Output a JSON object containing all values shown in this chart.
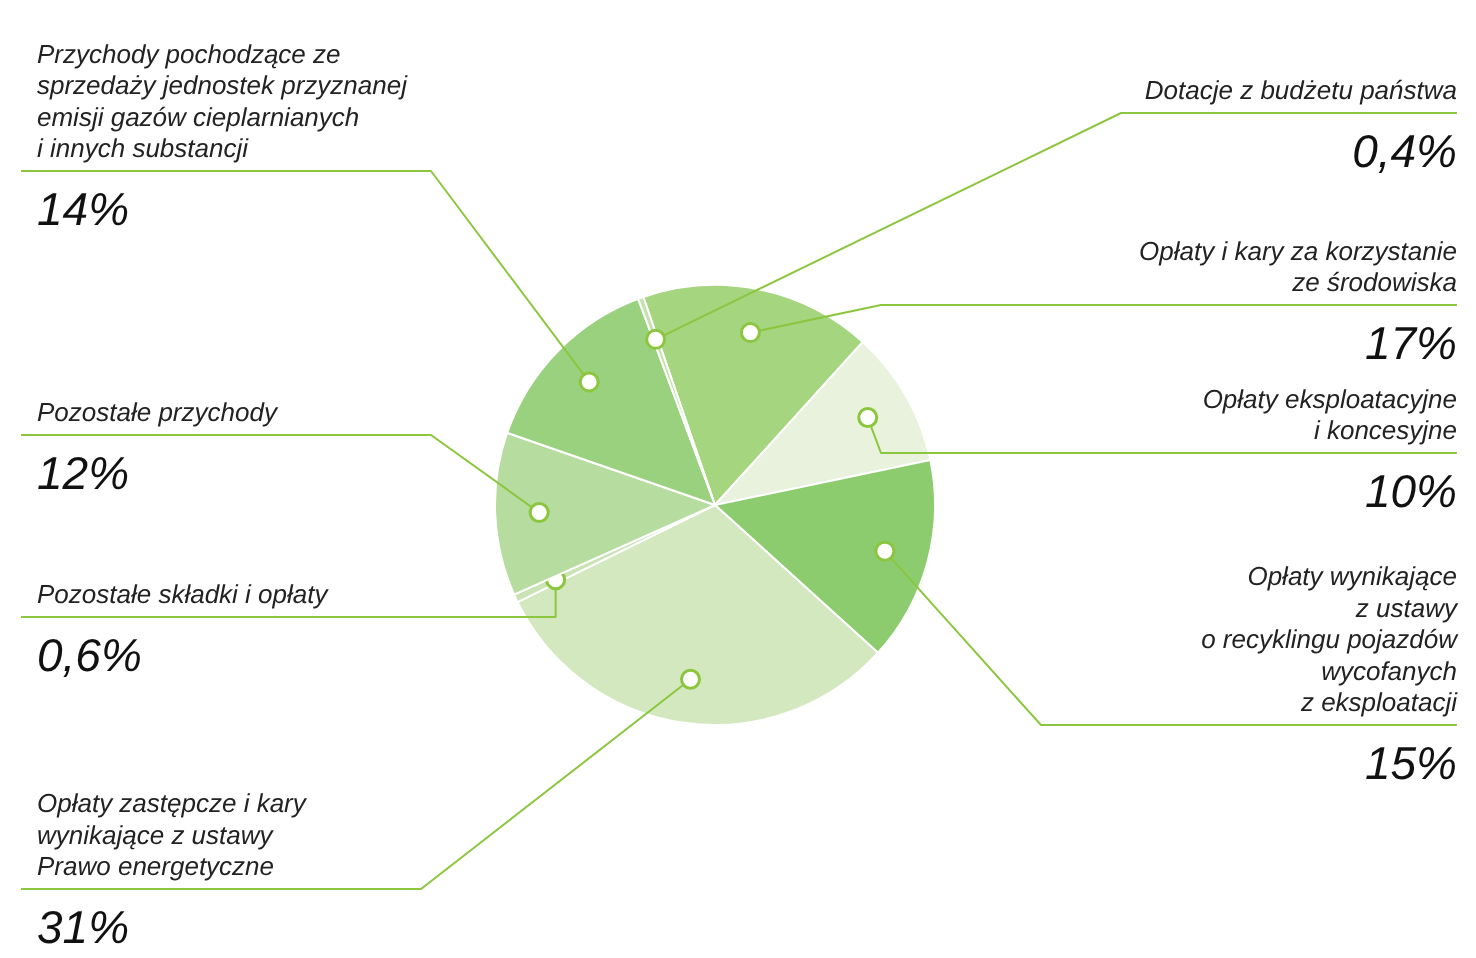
{
  "chart_data": {
    "type": "pie",
    "categories": [
      "Opłaty i kary za korzystanie\nze środowiska",
      "Opłaty eksploatacyjne\ni koncesyjne",
      "Opłaty wynikające\nz ustawy\no recyklingu pojazdów\nwycofanych\nz eksploatacji",
      "Opłaty zastępcze i kary\nwynikające z ustawy\nPrawo energetyczne",
      "Pozostałe składki i opłaty",
      "Pozostałe przychody",
      "Przychody pochodzące ze\nsprzedaży jednostek przyznanej\nemisji gazów cieplarnianych\ni innych substancji",
      "Dotacje z budżetu państwa"
    ],
    "values": [
      17,
      10,
      15,
      31,
      0.6,
      12,
      14,
      0.4
    ],
    "value_labels": [
      "17%",
      "10%",
      "15%",
      "31%",
      "0,6%",
      "12%",
      "14%",
      "0,4%"
    ],
    "colors": [
      "#a5d57f",
      "#e8f2dc",
      "#8ccc6e",
      "#d3e8bf",
      "#c9e3b4",
      "#b6dca0",
      "#9ad17f",
      "#c5e2ae"
    ]
  }
}
